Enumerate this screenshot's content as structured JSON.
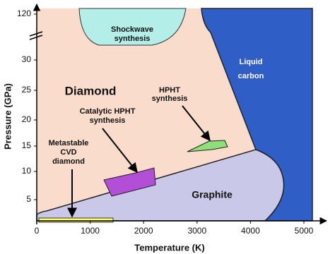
{
  "axes": {
    "x_label": "Temperature (K)",
    "y_label": "Pressure (GPa)",
    "x_ticks": [
      0,
      1000,
      2000,
      3000,
      4000,
      5000
    ],
    "y_ticks": [
      5,
      10,
      15,
      20,
      25,
      30,
      120
    ]
  },
  "regions": {
    "diamond": "Diamond",
    "liquid_carbon": [
      "Liquid",
      "carbon"
    ],
    "graphite": "Graphite",
    "shockwave": [
      "Shockwave",
      "synthesis"
    ],
    "catalytic_hpht": [
      "Catalytic HPHT",
      "synthesis"
    ],
    "hpht": [
      "HPHT",
      "synthesis"
    ],
    "cvd": [
      "Metastable",
      "CVD",
      "diamond"
    ]
  }
}
